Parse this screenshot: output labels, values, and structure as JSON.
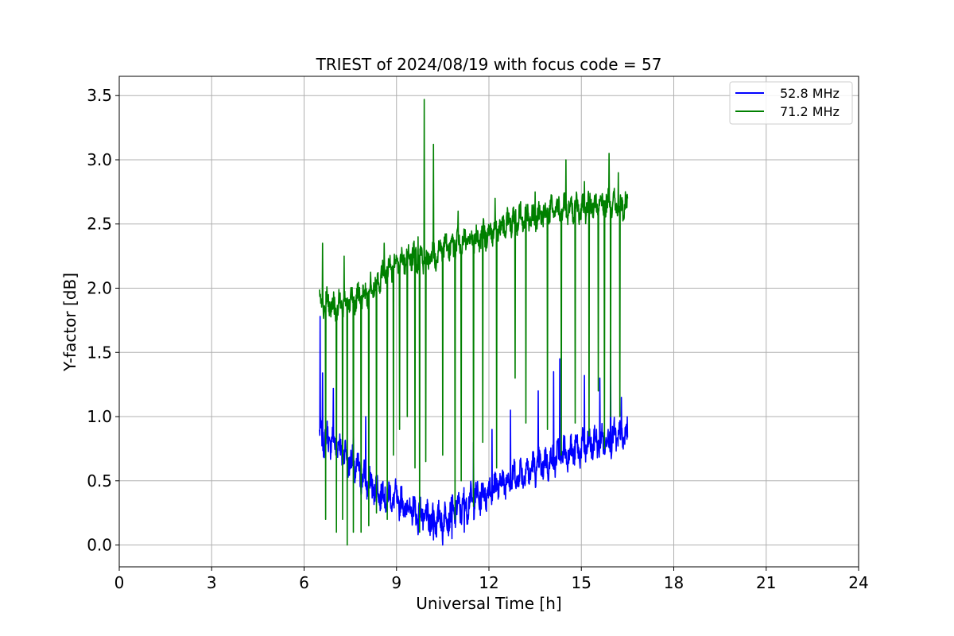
{
  "chart_data": {
    "type": "line",
    "title": "TRIEST of 2024/08/19 with focus code = 57",
    "xlabel": "Universal Time [h]",
    "ylabel": "Y-factor [dB]",
    "xlim": [
      0,
      24
    ],
    "ylim": [
      -0.17,
      3.65
    ],
    "x_ticks": [
      0,
      3,
      6,
      9,
      12,
      15,
      18,
      21,
      24
    ],
    "y_ticks": [
      0.0,
      0.5,
      1.0,
      1.5,
      2.0,
      2.5,
      3.0,
      3.5
    ],
    "x_tick_labels": [
      "0",
      "3",
      "6",
      "9",
      "12",
      "15",
      "18",
      "21",
      "24"
    ],
    "y_tick_labels": [
      "0.0",
      "0.5",
      "1.0",
      "1.5",
      "2.0",
      "2.5",
      "3.0",
      "3.5"
    ],
    "grid": true,
    "legend_position": "top-right",
    "series": [
      {
        "name": "52.8 MHz",
        "color": "#0000ff",
        "x_range": [
          6.5,
          16.5
        ],
        "baseline": [
          [
            6.5,
            0.85
          ],
          [
            7.0,
            0.8
          ],
          [
            7.5,
            0.65
          ],
          [
            8.0,
            0.5
          ],
          [
            8.5,
            0.4
          ],
          [
            9.0,
            0.35
          ],
          [
            9.5,
            0.27
          ],
          [
            10.0,
            0.2
          ],
          [
            10.5,
            0.2
          ],
          [
            11.0,
            0.28
          ],
          [
            11.5,
            0.35
          ],
          [
            12.0,
            0.42
          ],
          [
            12.5,
            0.5
          ],
          [
            13.0,
            0.55
          ],
          [
            13.5,
            0.6
          ],
          [
            14.0,
            0.65
          ],
          [
            14.5,
            0.72
          ],
          [
            15.0,
            0.75
          ],
          [
            15.5,
            0.8
          ],
          [
            16.0,
            0.83
          ],
          [
            16.5,
            0.85
          ]
        ],
        "peaks": [
          [
            6.52,
            1.78
          ],
          [
            6.6,
            1.34
          ],
          [
            6.95,
            1.22
          ],
          [
            7.6,
            1.05
          ],
          [
            8.0,
            1.0
          ],
          [
            11.5,
            0.8
          ],
          [
            12.1,
            0.9
          ],
          [
            12.7,
            1.05
          ],
          [
            13.6,
            1.2
          ],
          [
            14.1,
            1.35
          ],
          [
            14.3,
            1.45
          ],
          [
            15.1,
            1.32
          ],
          [
            15.6,
            1.3
          ],
          [
            15.95,
            1.6
          ],
          [
            16.3,
            1.15
          ]
        ],
        "dips": [
          [
            9.7,
            0.08
          ],
          [
            10.2,
            0.04
          ],
          [
            10.5,
            0.0
          ],
          [
            10.8,
            0.05
          ],
          [
            11.2,
            0.1
          ]
        ]
      },
      {
        "name": "71.2 MHz",
        "color": "#008000",
        "x_range": [
          6.5,
          16.5
        ],
        "baseline": [
          [
            6.5,
            1.9
          ],
          [
            7.0,
            1.85
          ],
          [
            7.5,
            1.9
          ],
          [
            8.0,
            1.95
          ],
          [
            8.5,
            2.1
          ],
          [
            9.0,
            2.2
          ],
          [
            9.5,
            2.25
          ],
          [
            10.0,
            2.22
          ],
          [
            10.5,
            2.3
          ],
          [
            11.0,
            2.35
          ],
          [
            11.5,
            2.38
          ],
          [
            12.0,
            2.43
          ],
          [
            12.5,
            2.5
          ],
          [
            13.0,
            2.55
          ],
          [
            13.5,
            2.55
          ],
          [
            14.0,
            2.6
          ],
          [
            14.5,
            2.62
          ],
          [
            15.0,
            2.62
          ],
          [
            15.5,
            2.65
          ],
          [
            16.0,
            2.65
          ],
          [
            16.5,
            2.65
          ]
        ],
        "peaks": [
          [
            6.6,
            2.35
          ],
          [
            7.3,
            2.25
          ],
          [
            8.6,
            2.35
          ],
          [
            9.7,
            2.4
          ],
          [
            9.9,
            3.47
          ],
          [
            10.2,
            3.12
          ],
          [
            11.0,
            2.6
          ],
          [
            12.2,
            2.7
          ],
          [
            13.5,
            2.75
          ],
          [
            13.9,
            3.12
          ],
          [
            14.5,
            3.0
          ],
          [
            15.1,
            2.83
          ],
          [
            15.9,
            3.05
          ],
          [
            16.2,
            2.9
          ]
        ],
        "dips": [
          [
            6.7,
            0.2
          ],
          [
            7.05,
            0.1
          ],
          [
            7.25,
            0.2
          ],
          [
            7.4,
            0.0
          ],
          [
            7.6,
            0.1
          ],
          [
            7.85,
            0.1
          ],
          [
            8.1,
            0.15
          ],
          [
            8.35,
            0.25
          ],
          [
            8.7,
            0.2
          ],
          [
            8.9,
            0.7
          ],
          [
            9.1,
            0.9
          ],
          [
            9.35,
            1.0
          ],
          [
            9.6,
            0.6
          ],
          [
            9.75,
            0.1
          ],
          [
            9.95,
            0.65
          ],
          [
            10.5,
            0.7
          ],
          [
            10.9,
            0.2
          ],
          [
            11.1,
            0.5
          ],
          [
            11.5,
            0.3
          ],
          [
            11.8,
            0.8
          ],
          [
            12.25,
            0.6
          ],
          [
            12.85,
            1.3
          ],
          [
            13.2,
            0.95
          ],
          [
            13.9,
            0.9
          ],
          [
            14.35,
            0.7
          ],
          [
            14.8,
            0.95
          ],
          [
            15.25,
            0.85
          ],
          [
            15.55,
            1.2
          ],
          [
            15.75,
            0.75
          ],
          [
            15.95,
            1.0
          ],
          [
            16.25,
            1.0
          ]
        ]
      }
    ]
  }
}
